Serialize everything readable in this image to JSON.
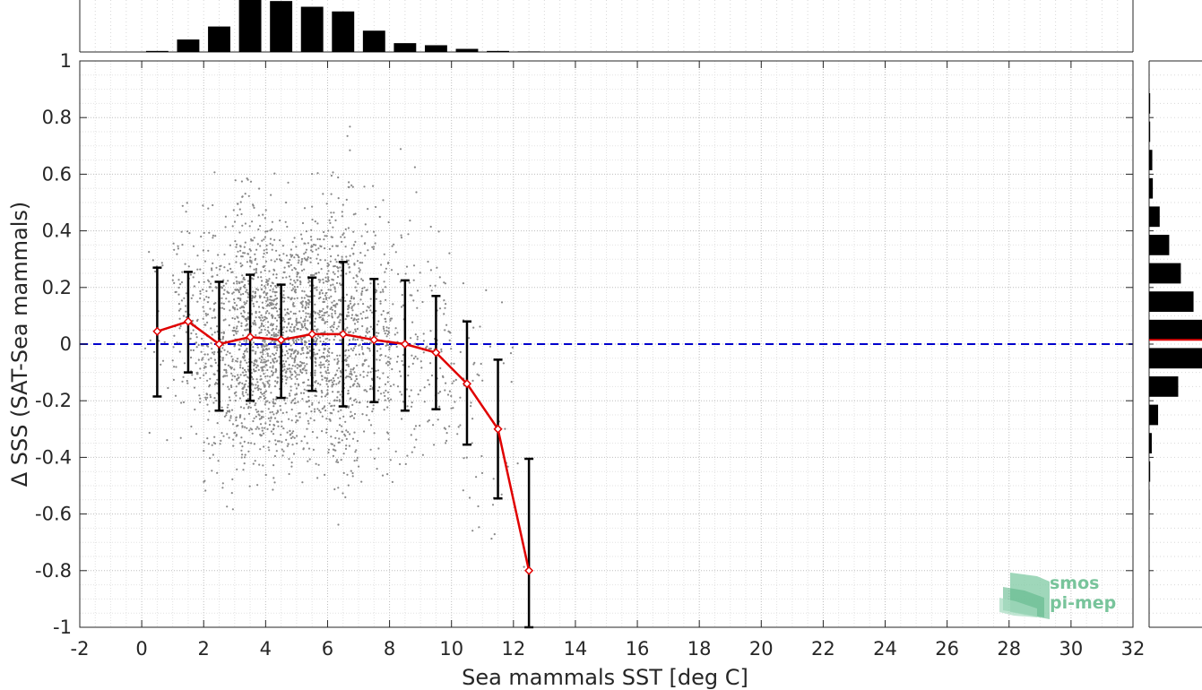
{
  "chart_data": {
    "type": "scatter",
    "xlabel": "Sea mammals SST [deg C]",
    "ylabel": "Δ SSS (SAT-Sea mammals)",
    "xlim": [
      -2,
      32
    ],
    "ylim": [
      -1,
      1
    ],
    "x_ticks": [
      "-2",
      "0",
      "2",
      "4",
      "6",
      "8",
      "10",
      "12",
      "14",
      "16",
      "18",
      "20",
      "22",
      "24",
      "26",
      "28",
      "30",
      "32"
    ],
    "y_ticks": [
      "-1",
      "-0.8",
      "-0.6",
      "-0.4",
      "-0.2",
      "0",
      "0.2",
      "0.4",
      "0.6",
      "0.8",
      "1"
    ],
    "grid": true,
    "reference_line": {
      "y": 0,
      "style": "dashed",
      "color": "#0000cc"
    },
    "binned_mean": {
      "color": "#e00000",
      "x": [
        0.5,
        1.5,
        2.5,
        3.5,
        4.5,
        5.5,
        6.5,
        7.5,
        8.5,
        9.5,
        10.5,
        11.5,
        12.5
      ],
      "mean": [
        0.045,
        0.08,
        0.0,
        0.025,
        0.015,
        0.035,
        0.035,
        0.015,
        0.0,
        -0.03,
        -0.14,
        -0.3,
        -0.8
      ],
      "std_low": [
        -0.185,
        -0.1,
        -0.235,
        -0.2,
        -0.19,
        -0.165,
        -0.22,
        -0.205,
        -0.235,
        -0.23,
        -0.355,
        -0.545,
        -1.0
      ],
      "std_high": [
        0.27,
        0.255,
        0.22,
        0.245,
        0.21,
        0.235,
        0.29,
        0.23,
        0.225,
        0.17,
        0.08,
        -0.055,
        -0.405
      ]
    },
    "scatter_cloud": {
      "color": "#888888",
      "x_range": [
        0,
        12.5
      ],
      "y_range": [
        -0.8,
        0.9
      ]
    },
    "top_histogram": {
      "bin_centers": [
        0.5,
        1.5,
        2.5,
        3.5,
        4.5,
        5.5,
        6.5,
        7.5,
        8.5,
        9.5,
        10.5,
        11.5,
        12.5
      ],
      "relative_counts": [
        0.02,
        0.24,
        0.49,
        1.0,
        0.98,
        0.87,
        0.78,
        0.41,
        0.17,
        0.13,
        0.06,
        0.02,
        0.01
      ]
    },
    "right_histogram": {
      "bin_centers": [
        0.85,
        0.75,
        0.65,
        0.55,
        0.45,
        0.35,
        0.25,
        0.15,
        0.05,
        -0.05,
        -0.15,
        -0.25,
        -0.35,
        -0.45,
        -0.55
      ],
      "relative_counts": [
        0.02,
        0.02,
        0.06,
        0.07,
        0.2,
        0.38,
        0.6,
        0.84,
        1.0,
        1.0,
        0.55,
        0.17,
        0.05,
        0.02,
        0.01
      ],
      "median_line_y": 0.015,
      "median_line_color": "#e00000"
    }
  },
  "logo": {
    "line1": "smos",
    "line2": "pi-mep"
  }
}
